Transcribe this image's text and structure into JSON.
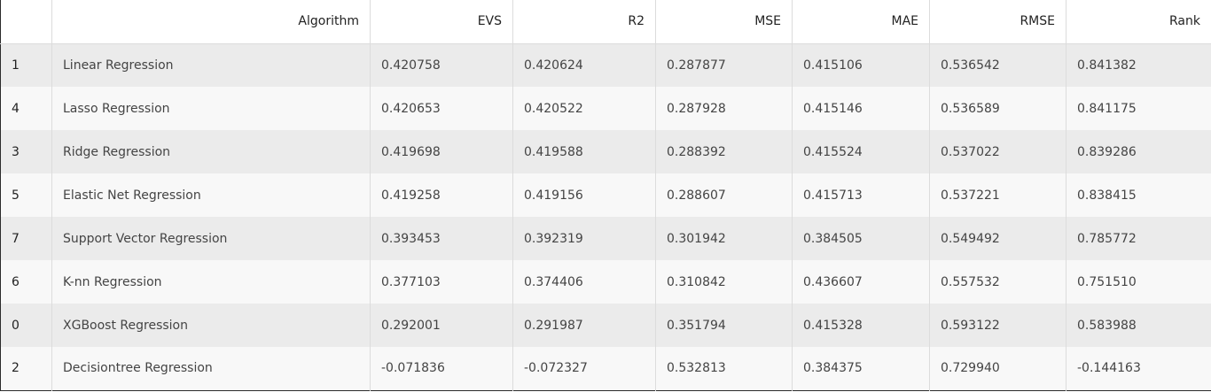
{
  "table": {
    "columns": [
      "",
      "Algorithm",
      "EVS",
      "R2",
      "MSE",
      "MAE",
      "RMSE",
      "Rank"
    ],
    "rows": [
      {
        "index": "1",
        "algorithm": "Linear Regression",
        "evs": "0.420758",
        "r2": "0.420624",
        "mse": "0.287877",
        "mae": "0.415106",
        "rmse": "0.536542",
        "rank": "0.841382"
      },
      {
        "index": "4",
        "algorithm": "Lasso Regression",
        "evs": "0.420653",
        "r2": "0.420522",
        "mse": "0.287928",
        "mae": "0.415146",
        "rmse": "0.536589",
        "rank": "0.841175"
      },
      {
        "index": "3",
        "algorithm": "Ridge Regression",
        "evs": "0.419698",
        "r2": "0.419588",
        "mse": "0.288392",
        "mae": "0.415524",
        "rmse": "0.537022",
        "rank": "0.839286"
      },
      {
        "index": "5",
        "algorithm": "Elastic Net Regression",
        "evs": "0.419258",
        "r2": "0.419156",
        "mse": "0.288607",
        "mae": "0.415713",
        "rmse": "0.537221",
        "rank": "0.838415"
      },
      {
        "index": "7",
        "algorithm": "Support Vector Regression",
        "evs": "0.393453",
        "r2": "0.392319",
        "mse": "0.301942",
        "mae": "0.384505",
        "rmse": "0.549492",
        "rank": "0.785772"
      },
      {
        "index": "6",
        "algorithm": "K-nn Regression",
        "evs": "0.377103",
        "r2": "0.374406",
        "mse": "0.310842",
        "mae": "0.436607",
        "rmse": "0.557532",
        "rank": "0.751510"
      },
      {
        "index": "0",
        "algorithm": "XGBoost Regression",
        "evs": "0.292001",
        "r2": "0.291987",
        "mse": "0.351794",
        "mae": "0.415328",
        "rmse": "0.593122",
        "rank": "0.583988"
      },
      {
        "index": "2",
        "algorithm": "Decisiontree Regression",
        "evs": "-0.071836",
        "r2": "-0.072327",
        "mse": "0.532813",
        "mae": "0.384375",
        "rmse": "0.729940",
        "rank": "-0.144163"
      }
    ]
  }
}
